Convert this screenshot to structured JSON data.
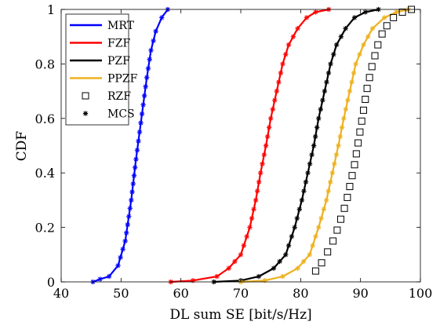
{
  "chart_data": {
    "type": "line",
    "xlabel": "DL sum SE [bit/s/Hz]",
    "ylabel": "CDF",
    "xlim": [
      40,
      100
    ],
    "ylim": [
      0,
      1
    ],
    "xticks": [
      40,
      50,
      60,
      70,
      80,
      90,
      100
    ],
    "yticks": [
      0,
      0.2,
      0.4,
      0.6,
      0.8,
      1
    ],
    "xtick_labels": [
      "40",
      "50",
      "60",
      "70",
      "80",
      "90",
      "100"
    ],
    "ytick_labels": [
      "0",
      "0.2",
      "0.4",
      "0.6",
      "0.8",
      "1"
    ],
    "grid": false,
    "legend_position": "top-left",
    "series": [
      {
        "name": "MRT",
        "color": "#0000ff",
        "style": "line+star",
        "points": [
          [
            45.3,
            0.0
          ],
          [
            46.5,
            0.01
          ],
          [
            48.0,
            0.02
          ],
          [
            49.5,
            0.06
          ],
          [
            50.7,
            0.15
          ],
          [
            51.7,
            0.3
          ],
          [
            52.5,
            0.45
          ],
          [
            53.1,
            0.55
          ],
          [
            53.7,
            0.65
          ],
          [
            54.3,
            0.75
          ],
          [
            55.0,
            0.85
          ],
          [
            55.8,
            0.92
          ],
          [
            56.8,
            0.97
          ],
          [
            57.8,
            1.0
          ]
        ]
      },
      {
        "name": "FZF",
        "color": "#ff0000",
        "style": "line+star",
        "points": [
          [
            58.3,
            0.0
          ],
          [
            62.0,
            0.005
          ],
          [
            66.0,
            0.02
          ],
          [
            68.0,
            0.05
          ],
          [
            70.0,
            0.1
          ],
          [
            71.5,
            0.2
          ],
          [
            72.5,
            0.3
          ],
          [
            73.3,
            0.4
          ],
          [
            74.2,
            0.5
          ],
          [
            75.0,
            0.6
          ],
          [
            76.0,
            0.7
          ],
          [
            77.0,
            0.8
          ],
          [
            78.0,
            0.87
          ],
          [
            79.5,
            0.93
          ],
          [
            81.0,
            0.97
          ],
          [
            82.5,
            0.99
          ],
          [
            84.7,
            1.0
          ]
        ]
      },
      {
        "name": "PZF",
        "color": "#000000",
        "style": "line+star",
        "points": [
          [
            65.5,
            0.0
          ],
          [
            70.0,
            0.005
          ],
          [
            73.0,
            0.02
          ],
          [
            75.5,
            0.05
          ],
          [
            77.5,
            0.1
          ],
          [
            79.0,
            0.2
          ],
          [
            80.2,
            0.3
          ],
          [
            81.2,
            0.4
          ],
          [
            82.2,
            0.5
          ],
          [
            83.0,
            0.6
          ],
          [
            84.0,
            0.7
          ],
          [
            85.0,
            0.8
          ],
          [
            86.0,
            0.87
          ],
          [
            87.5,
            0.93
          ],
          [
            89.0,
            0.97
          ],
          [
            90.8,
            0.99
          ],
          [
            93.0,
            1.0
          ]
        ]
      },
      {
        "name": "PPZF",
        "color": "#edb120",
        "style": "line+star",
        "points": [
          [
            70.0,
            0.0
          ],
          [
            74.0,
            0.005
          ],
          [
            77.0,
            0.02
          ],
          [
            79.5,
            0.05
          ],
          [
            81.5,
            0.1
          ],
          [
            83.0,
            0.2
          ],
          [
            84.3,
            0.3
          ],
          [
            85.3,
            0.4
          ],
          [
            86.3,
            0.5
          ],
          [
            87.2,
            0.6
          ],
          [
            88.2,
            0.7
          ],
          [
            89.2,
            0.8
          ],
          [
            90.5,
            0.87
          ],
          [
            92.0,
            0.93
          ],
          [
            94.0,
            0.97
          ],
          [
            96.0,
            0.99
          ],
          [
            98.0,
            1.0
          ]
        ]
      },
      {
        "name": "RZF",
        "color": "#000000",
        "style": "square",
        "points": [
          [
            82.5,
            0.04
          ],
          [
            83.5,
            0.07
          ],
          [
            84.5,
            0.11
          ],
          [
            85.4,
            0.15
          ],
          [
            86.1,
            0.19
          ],
          [
            86.7,
            0.23
          ],
          [
            87.3,
            0.27
          ],
          [
            87.8,
            0.31
          ],
          [
            88.2,
            0.35
          ],
          [
            88.6,
            0.39
          ],
          [
            89.0,
            0.43
          ],
          [
            89.3,
            0.47
          ],
          [
            89.6,
            0.51
          ],
          [
            89.9,
            0.55
          ],
          [
            90.2,
            0.59
          ],
          [
            90.5,
            0.63
          ],
          [
            90.8,
            0.67
          ],
          [
            91.1,
            0.71
          ],
          [
            91.5,
            0.75
          ],
          [
            91.9,
            0.79
          ],
          [
            92.4,
            0.83
          ],
          [
            92.9,
            0.87
          ],
          [
            93.6,
            0.91
          ],
          [
            94.4,
            0.94
          ],
          [
            95.5,
            0.97
          ],
          [
            97.0,
            0.99
          ],
          [
            98.5,
            1.0
          ]
        ]
      },
      {
        "name": "MCS",
        "color": "#000000",
        "style": "star",
        "points": []
      }
    ]
  }
}
